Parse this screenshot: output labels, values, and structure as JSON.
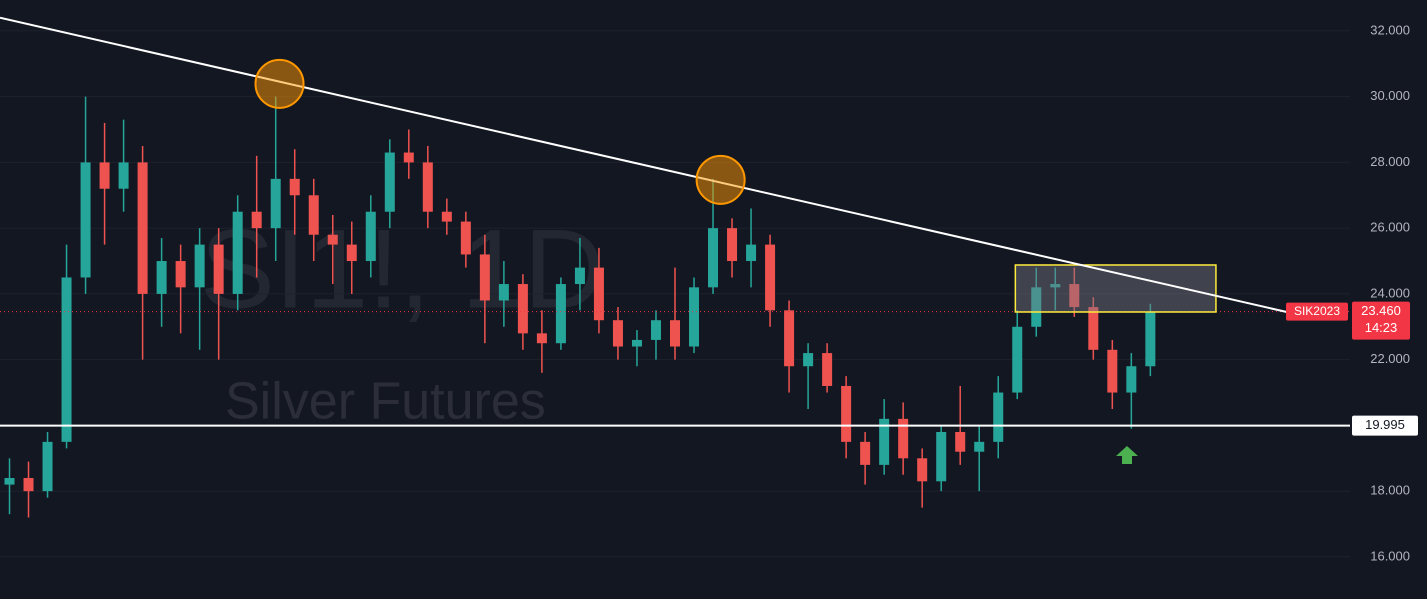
{
  "chart_data": {
    "type": "candlestick",
    "watermark_symbol": "SI1!, 1D",
    "watermark_name": "Silver Futures",
    "xlim": [
      -0.5,
      70.5
    ],
    "ylim": [
      14.72,
      32.94
    ],
    "yticks": [
      {
        "value": 16,
        "label": "16.000"
      },
      {
        "value": 18,
        "label": "18.000"
      },
      {
        "value": 20,
        "label": "20.000"
      },
      {
        "value": 22,
        "label": "22.000"
      },
      {
        "value": 24,
        "label": "24.000"
      },
      {
        "value": 26,
        "label": "26.000"
      },
      {
        "value": 28,
        "label": "28.000"
      },
      {
        "value": 30,
        "label": "30.000"
      },
      {
        "value": 32,
        "label": "32.000"
      }
    ],
    "grid": true,
    "up_color": "#26a69a",
    "down_color": "#ef5350",
    "open": [
      18.2,
      18.4,
      18.0,
      19.5,
      24.5,
      28.0,
      27.2,
      28.0,
      24.0,
      25.0,
      24.2,
      25.5,
      24.0,
      26.5,
      26.0,
      27.5,
      27.0,
      25.8,
      25.5,
      25.0,
      26.5,
      28.3,
      28.0,
      26.5,
      26.2,
      25.2,
      23.8,
      24.3,
      22.8,
      22.5,
      24.3,
      24.8,
      23.2,
      22.4,
      22.6,
      23.2,
      22.4,
      24.2,
      26.0,
      25.0,
      25.5,
      23.5,
      21.8,
      22.2,
      21.2,
      19.5,
      18.8,
      20.2,
      19.0,
      18.3,
      19.8,
      19.2,
      19.5,
      21.0,
      23.0,
      24.2,
      24.3,
      23.6,
      22.3,
      21.0,
      21.8
    ],
    "high": [
      19.0,
      18.9,
      19.8,
      25.5,
      30.0,
      29.2,
      29.3,
      28.5,
      25.7,
      25.5,
      26.0,
      26.0,
      27.0,
      28.2,
      30.0,
      28.4,
      27.5,
      26.4,
      26.2,
      27.0,
      28.7,
      29.0,
      28.5,
      26.9,
      26.5,
      25.8,
      25.0,
      24.6,
      23.5,
      24.5,
      25.7,
      25.4,
      23.6,
      22.9,
      23.5,
      24.8,
      24.5,
      27.5,
      26.3,
      26.6,
      25.8,
      23.8,
      22.5,
      22.5,
      21.5,
      19.8,
      20.8,
      20.7,
      19.3,
      20.0,
      21.2,
      20.0,
      21.5,
      23.5,
      24.8,
      24.8,
      24.8,
      23.9,
      22.6,
      22.2,
      23.7
    ],
    "low": [
      17.3,
      17.2,
      17.8,
      19.3,
      24.0,
      25.5,
      26.5,
      22.0,
      23.0,
      22.8,
      22.3,
      22.0,
      23.5,
      24.5,
      25.0,
      25.8,
      25.0,
      24.3,
      24.0,
      24.5,
      26.0,
      27.5,
      26.0,
      25.8,
      24.8,
      22.5,
      23.0,
      22.3,
      21.6,
      22.3,
      23.5,
      22.8,
      22.0,
      21.8,
      22.0,
      22.0,
      22.2,
      24.0,
      24.5,
      24.2,
      23.0,
      21.0,
      20.5,
      21.0,
      19.0,
      18.2,
      18.5,
      18.5,
      17.5,
      18.0,
      18.8,
      18.0,
      19.0,
      20.8,
      22.7,
      23.5,
      23.3,
      22.0,
      20.5,
      19.9,
      21.5
    ],
    "close": [
      18.4,
      18.0,
      19.5,
      24.5,
      28.0,
      27.2,
      28.0,
      24.0,
      25.0,
      24.2,
      25.5,
      24.0,
      26.5,
      26.0,
      27.5,
      27.0,
      25.8,
      25.5,
      25.0,
      26.5,
      28.3,
      28.0,
      26.5,
      26.2,
      25.2,
      23.8,
      24.3,
      22.8,
      22.5,
      24.3,
      24.8,
      23.2,
      22.4,
      22.6,
      23.2,
      22.4,
      24.2,
      26.0,
      25.0,
      25.5,
      23.5,
      21.8,
      22.2,
      21.2,
      19.5,
      18.8,
      20.2,
      19.0,
      18.3,
      19.8,
      19.2,
      19.5,
      21.0,
      23.0,
      24.2,
      24.3,
      23.6,
      22.3,
      21.0,
      21.8,
      23.46
    ],
    "trendline": {
      "x": [
        -0.5,
        67.4
      ],
      "y": [
        32.4,
        23.42
      ],
      "color": "#ffffff"
    },
    "horizontal_line": {
      "value": 19.995,
      "color": "#ffffff"
    },
    "last_price": {
      "symbol": "SIK2023",
      "value": 23.46,
      "value_label": "23.460",
      "countdown": "14:23",
      "color": "#f23645"
    },
    "zone": {
      "x": [
        52.9,
        63.45
      ],
      "y": [
        23.45,
        24.88
      ],
      "color": "#ffeb3b"
    },
    "highlights": {
      "x": [
        14.2,
        37.4
      ],
      "y": [
        30.39,
        27.47
      ],
      "color": "#ff9800"
    }
  }
}
